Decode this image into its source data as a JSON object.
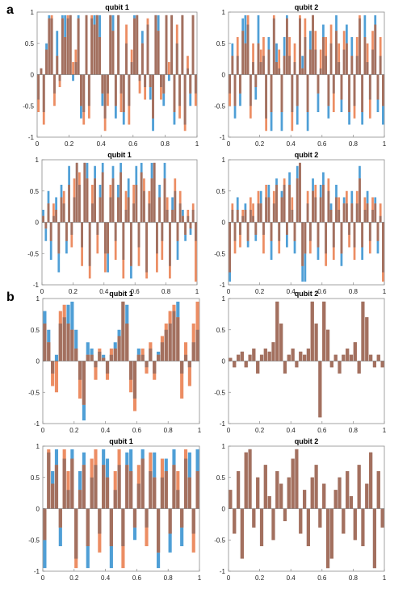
{
  "colors": {
    "series_a": "#4f9fd6",
    "series_b": "#ec8d63",
    "overlap": "#a3705f"
  },
  "panel_labels": [
    "a",
    "b"
  ],
  "chart_data": [
    {
      "type": "bar",
      "title": "qubit 1",
      "ylim": [
        -1,
        1
      ],
      "xlim": [
        0,
        1
      ],
      "xticks": [
        "0",
        "0.2",
        "0.4",
        "0.6",
        "0.8",
        "1"
      ],
      "yticks": [
        "1",
        "0.5",
        "0",
        "-0.5",
        "-1"
      ],
      "series": [
        {
          "values": [
            -0.4,
            0.1,
            -0.6,
            0.5,
            0.95,
            0.9,
            -0.3,
            0.7,
            -0.1,
            0.95,
            0.95,
            0.9,
            0.95,
            -0.1,
            0.2,
            0.95,
            -0.7,
            -0.6,
            0.95,
            -0.5,
            0.9,
            0.95,
            0.95,
            0.95,
            -0.5,
            -0.7,
            -0.3,
            0.95,
            0.95,
            -0.7,
            0.95,
            -0.3,
            -0.8,
            0.5,
            -0.5,
            0.2,
            0.95,
            0.95,
            -0.1,
            0.7,
            -0.2,
            0.8,
            -0.4,
            -0.9,
            0.95,
            0.95,
            -0.2,
            -0.5,
            0.95,
            -0.1,
            0.95,
            -0.8,
            0.5,
            -0.5,
            0.95,
            -0.8,
            0.1,
            -0.5,
            0.95,
            -0.3
          ]
        },
        {
          "values": [
            -0.6,
            0.1,
            -0.8,
            0.4,
            0.9,
            0.95,
            -0.5,
            0.3,
            -0.2,
            0.9,
            0.6,
            0.95,
            0.95,
            0.2,
            0.4,
            0.9,
            -0.5,
            -0.8,
            0.95,
            -0.7,
            0.95,
            0.8,
            0.95,
            0.6,
            -0.3,
            -0.9,
            -0.5,
            0.95,
            0.7,
            -0.5,
            0.95,
            -0.6,
            -0.6,
            0.8,
            -0.8,
            0.4,
            0.9,
            0.95,
            -0.3,
            0.5,
            -0.4,
            0.9,
            -0.2,
            -0.7,
            0.95,
            0.7,
            -0.4,
            -0.3,
            0.95,
            0.2,
            0.95,
            -0.6,
            0.8,
            -0.7,
            0.95,
            -0.9,
            0.3,
            -0.3,
            0.95,
            -0.5
          ]
        }
      ]
    },
    {
      "type": "bar",
      "title": "qubit 2",
      "ylim": [
        -1,
        1
      ],
      "xlim": [
        0,
        1
      ],
      "xticks": [
        "0",
        "0.2",
        "0.4",
        "0.6",
        "0.8",
        "1"
      ],
      "yticks": [
        "1",
        "0.5",
        "0",
        "-0.5",
        "-1"
      ],
      "series": [
        {
          "values": [
            -0.3,
            0.5,
            -0.7,
            0.3,
            -0.5,
            0.9,
            0.95,
            0.8,
            -0.5,
            0.2,
            -0.4,
            0.95,
            0.2,
            0.3,
            -0.7,
            0.6,
            -0.9,
            0.9,
            0.5,
            0.1,
            -0.9,
            0.6,
            0.95,
            0.3,
            -0.6,
            0.2,
            -0.8,
            0.9,
            0.3,
            0.6,
            -0.9,
            0.7,
            0.95,
            0.4,
            -0.6,
            0.1,
            0.8,
            0.3,
            -0.7,
            0.5,
            -0.3,
            0.95,
            0.2,
            -0.6,
            0.4,
            0.8,
            -0.8,
            0.6,
            -0.5,
            0.3,
            0.9,
            -0.8,
            0.95,
            0.2,
            -0.4,
            0.4,
            0.95,
            -0.6,
            0.3,
            -0.8
          ]
        },
        {
          "values": [
            -0.5,
            0.3,
            -0.5,
            0.6,
            -0.3,
            0.7,
            0.5,
            0.95,
            -0.7,
            0.5,
            -0.2,
            0.5,
            0.4,
            0.6,
            -0.9,
            0.4,
            -0.6,
            0.95,
            0.2,
            0.4,
            -0.6,
            0.3,
            0.9,
            0.6,
            -0.9,
            0.5,
            -0.5,
            0.95,
            0.1,
            0.9,
            -0.6,
            0.4,
            0.95,
            0.7,
            -0.3,
            0.4,
            0.6,
            0.6,
            -0.5,
            0.8,
            -0.6,
            0.7,
            0.5,
            -0.4,
            0.7,
            0.5,
            -0.6,
            0.3,
            -0.7,
            0.6,
            0.95,
            -0.6,
            0.6,
            0.5,
            -0.7,
            0.7,
            0.8,
            -0.4,
            0.6,
            -0.5
          ]
        }
      ]
    },
    {
      "type": "bar",
      "title": "qubit 1",
      "ylim": [
        -1,
        1
      ],
      "xlim": [
        0,
        1
      ],
      "xticks": [
        "0",
        "0.2",
        "0.4",
        "0.6",
        "0.8",
        "1"
      ],
      "yticks": [
        "1",
        "0.5",
        "0",
        "-0.5",
        "-1"
      ],
      "series": [
        {
          "values": [
            0.2,
            -0.3,
            0.5,
            -0.6,
            0.1,
            0.4,
            -0.8,
            0.6,
            0.3,
            -0.5,
            0.9,
            -0.2,
            0.4,
            0.95,
            0.6,
            -0.4,
            0.95,
            0.95,
            -0.7,
            0.3,
            0.9,
            -0.2,
            0.6,
            0.95,
            -0.5,
            -0.8,
            0.4,
            0.9,
            -0.3,
            0.6,
            0.95,
            -0.6,
            0.2,
            0.7,
            -0.9,
            0.3,
            0.9,
            -0.4,
            0.95,
            0.5,
            -0.8,
            0.3,
            0.95,
            0.95,
            -0.5,
            0.6,
            -0.3,
            0.95,
            0.2,
            -0.7,
            0.4,
            0.5,
            -0.6,
            0.3,
            0.2,
            -0.3,
            0.1,
            -0.2,
            0.2,
            -0.3
          ]
        },
        {
          "values": [
            0.1,
            -0.1,
            0.3,
            -0.3,
            0.3,
            0.2,
            -0.5,
            0.4,
            0.5,
            -0.3,
            0.6,
            -0.4,
            0.7,
            0.95,
            0.8,
            -0.7,
            0.95,
            0.7,
            -0.9,
            0.6,
            0.7,
            -0.5,
            0.4,
            0.8,
            -0.8,
            -0.5,
            0.6,
            0.7,
            -0.6,
            0.4,
            0.8,
            -0.9,
            0.5,
            0.4,
            -0.7,
            0.6,
            0.6,
            -0.7,
            0.8,
            0.7,
            -0.9,
            0.5,
            0.7,
            0.95,
            -0.8,
            0.4,
            -0.6,
            0.7,
            0.4,
            -0.9,
            0.2,
            0.7,
            -0.3,
            0.5,
            0.1,
            -0.2,
            0.2,
            -0.1,
            0.3,
            -0.95
          ]
        }
      ]
    },
    {
      "type": "bar",
      "title": "qubit 2",
      "ylim": [
        -1,
        1
      ],
      "xlim": [
        0,
        1
      ],
      "xticks": [
        "0",
        "0.2",
        "0.4",
        "0.6",
        "0.8",
        "1"
      ],
      "yticks": [
        "1",
        "0.5",
        "0",
        "-0.5",
        "-1"
      ],
      "series": [
        {
          "values": [
            -0.95,
            0.2,
            -0.3,
            0.4,
            -0.2,
            0.1,
            0.3,
            -0.4,
            0.2,
            0.1,
            -0.3,
            0.3,
            0.5,
            -0.2,
            0.4,
            0.6,
            -0.6,
            0.3,
            0.7,
            -0.3,
            0.5,
            0.6,
            -0.4,
            0.8,
            0.2,
            -0.5,
            0.9,
            0.95,
            -0.95,
            -0.95,
            0.3,
            -0.3,
            0.7,
            0.4,
            -0.6,
            0.6,
            0.8,
            -0.5,
            0.5,
            0.3,
            -0.4,
            0.6,
            0.2,
            -0.7,
            0.4,
            0.3,
            -0.2,
            0.5,
            -0.4,
            0.3,
            0.9,
            -0.6,
            0.2,
            0.5,
            -0.3,
            0.2,
            0.4,
            -0.5,
            0.1,
            -0.8
          ]
        },
        {
          "values": [
            -0.8,
            0.3,
            -0.5,
            0.2,
            -0.4,
            0.2,
            0.2,
            -0.3,
            0.4,
            0.3,
            -0.2,
            0.5,
            0.3,
            -0.5,
            0.6,
            0.4,
            -0.3,
            0.5,
            0.6,
            -0.5,
            0.4,
            0.7,
            -0.2,
            0.6,
            0.4,
            -0.3,
            0.7,
            0.95,
            -0.7,
            -0.5,
            0.5,
            -0.5,
            0.5,
            0.6,
            -0.4,
            0.4,
            0.6,
            -0.7,
            0.7,
            0.2,
            -0.6,
            0.4,
            0.4,
            -0.5,
            0.3,
            0.5,
            -0.4,
            0.3,
            -0.6,
            0.5,
            0.7,
            -0.4,
            0.4,
            0.3,
            -0.5,
            0.4,
            0.3,
            -0.3,
            0.3,
            -0.95
          ]
        }
      ]
    },
    {
      "type": "bar",
      "title": "qubit 1",
      "ylim": [
        -1,
        1
      ],
      "xlim": [
        0,
        1
      ],
      "xticks": [
        "0",
        "0.2",
        "0.4",
        "0.6",
        "0.8",
        "1"
      ],
      "yticks": [
        "1",
        "0.5",
        "0",
        "-0.5",
        "-1"
      ],
      "series": [
        {
          "values": [
            0.8,
            0.5,
            -0.2,
            0.1,
            0.6,
            0.7,
            0.9,
            0.95,
            0.5,
            -0.3,
            -0.95,
            0.3,
            0.2,
            -0.1,
            0.15,
            0.1,
            -0.2,
            0.1,
            0.3,
            0.5,
            0.95,
            0.9,
            -0.3,
            -0.6,
            0.2,
            0.1,
            -0.1,
            0.2,
            -0.2,
            0.15,
            0.3,
            0.5,
            0.6,
            0.8,
            0.95,
            -0.2,
            0.1,
            -0.1,
            0.3,
            0.5
          ]
        },
        {
          "values": [
            0.6,
            0.3,
            -0.4,
            -0.5,
            0.8,
            0.9,
            0.6,
            0.5,
            0.2,
            -0.6,
            -0.7,
            0.1,
            0.1,
            -0.3,
            0.2,
            0.05,
            -0.3,
            0.2,
            0.2,
            0.4,
            0.95,
            0.6,
            -0.5,
            -0.8,
            0.1,
            0.2,
            -0.2,
            0.3,
            -0.3,
            0.1,
            0.4,
            0.6,
            0.8,
            0.9,
            0.7,
            -0.6,
            0.3,
            -0.4,
            0.6,
            0.95
          ]
        }
      ]
    },
    {
      "type": "bar",
      "title": "qubit 2",
      "ylim": [
        -1,
        1
      ],
      "xlim": [
        0,
        1
      ],
      "xticks": [
        "0",
        "0.2",
        "0.4",
        "0.6",
        "0.8",
        "1"
      ],
      "yticks": [
        "1",
        "0.5",
        "0",
        "-0.5",
        "-1"
      ],
      "series": [
        {
          "values": [
            0.05,
            -0.1,
            0.1,
            0.15,
            -0.1,
            0.1,
            0.2,
            -0.2,
            0.1,
            0.2,
            0.15,
            0.3,
            0.95,
            0.6,
            -0.2,
            0.1,
            0.2,
            -0.1,
            0.15,
            0.1,
            0.2,
            0.95,
            0.6,
            -0.9,
            0.95,
            0.5,
            -0.1,
            0.1,
            -0.2,
            0.1,
            0.2,
            0.1,
            0.3,
            -0.2,
            0.95,
            0.7,
            0.1,
            -0.1,
            0.1,
            -0.1
          ]
        },
        {
          "values": [
            0.05,
            -0.1,
            0.1,
            0.15,
            -0.1,
            0.1,
            0.2,
            -0.2,
            0.1,
            0.2,
            0.15,
            0.3,
            0.95,
            0.6,
            -0.2,
            0.1,
            0.2,
            -0.1,
            0.15,
            0.1,
            0.2,
            0.95,
            0.6,
            -0.9,
            0.95,
            0.5,
            -0.1,
            0.1,
            -0.2,
            0.1,
            0.2,
            0.1,
            0.3,
            -0.2,
            0.95,
            0.7,
            0.1,
            -0.1,
            0.1,
            -0.1
          ]
        }
      ]
    },
    {
      "type": "bar",
      "title": "qubit 1",
      "ylim": [
        -1,
        1
      ],
      "xlim": [
        0,
        1
      ],
      "xticks": [
        "0",
        "0.2",
        "0.4",
        "0.6",
        "0.8",
        "1"
      ],
      "yticks": [
        "1",
        "0.5",
        "0",
        "-0.5",
        "-1"
      ],
      "series": [
        {
          "values": [
            -0.95,
            0.9,
            0.6,
            0.95,
            -0.6,
            0.8,
            0.3,
            0.95,
            -0.8,
            0.6,
            0.9,
            -0.95,
            0.5,
            0.7,
            -0.4,
            0.95,
            0.8,
            -0.95,
            0.3,
            0.7,
            -0.6,
            0.9,
            0.95,
            -0.5,
            0.4,
            0.95,
            -0.3,
            0.6,
            0.9,
            -0.95,
            0.5,
            0.8,
            -0.7,
            0.95,
            0.3,
            -0.6,
            0.8,
            0.9,
            -0.4,
            0.95
          ]
        },
        {
          "values": [
            -0.5,
            0.95,
            0.4,
            0.7,
            -0.3,
            0.95,
            0.6,
            0.8,
            -0.95,
            0.3,
            0.7,
            -0.6,
            0.8,
            0.95,
            -0.7,
            0.7,
            0.5,
            -0.6,
            0.6,
            0.95,
            -0.95,
            0.7,
            0.6,
            -0.3,
            0.7,
            0.8,
            -0.6,
            0.9,
            0.5,
            -0.7,
            0.8,
            0.6,
            -0.4,
            0.7,
            0.6,
            -0.3,
            0.95,
            0.5,
            -0.7,
            0.6
          ]
        }
      ]
    },
    {
      "type": "bar",
      "title": "qubit 2",
      "ylim": [
        -1,
        1
      ],
      "xlim": [
        0,
        1
      ],
      "xticks": [
        "0",
        "0.2",
        "0.4",
        "0.6",
        "0.8",
        "1"
      ],
      "yticks": [
        "1",
        "0.5",
        "0",
        "-0.5",
        "-1"
      ],
      "series": [
        {
          "values": [
            0.3,
            -0.4,
            0.6,
            -0.8,
            0.9,
            0.95,
            -0.3,
            0.5,
            -0.6,
            0.7,
            0.2,
            -0.5,
            0.6,
            0.4,
            -0.2,
            0.5,
            0.8,
            0.95,
            -0.4,
            0.3,
            -0.6,
            0.5,
            0.7,
            -0.3,
            0.4,
            -0.95,
            -0.8,
            0.3,
            0.5,
            -0.4,
            0.6,
            0.2,
            -0.5,
            0.7,
            -0.6,
            0.4,
            0.9,
            -0.95,
            0.6,
            -0.3
          ]
        },
        {
          "values": [
            0.3,
            -0.4,
            0.6,
            -0.8,
            0.9,
            0.95,
            -0.3,
            0.5,
            -0.6,
            0.7,
            0.2,
            -0.5,
            0.6,
            0.4,
            -0.2,
            0.5,
            0.8,
            0.95,
            -0.4,
            0.3,
            -0.6,
            0.5,
            0.7,
            -0.3,
            0.4,
            -0.95,
            -0.8,
            0.3,
            0.5,
            -0.4,
            0.6,
            0.2,
            -0.5,
            0.7,
            -0.6,
            0.4,
            0.9,
            -0.95,
            0.6,
            -0.3
          ]
        }
      ]
    }
  ]
}
